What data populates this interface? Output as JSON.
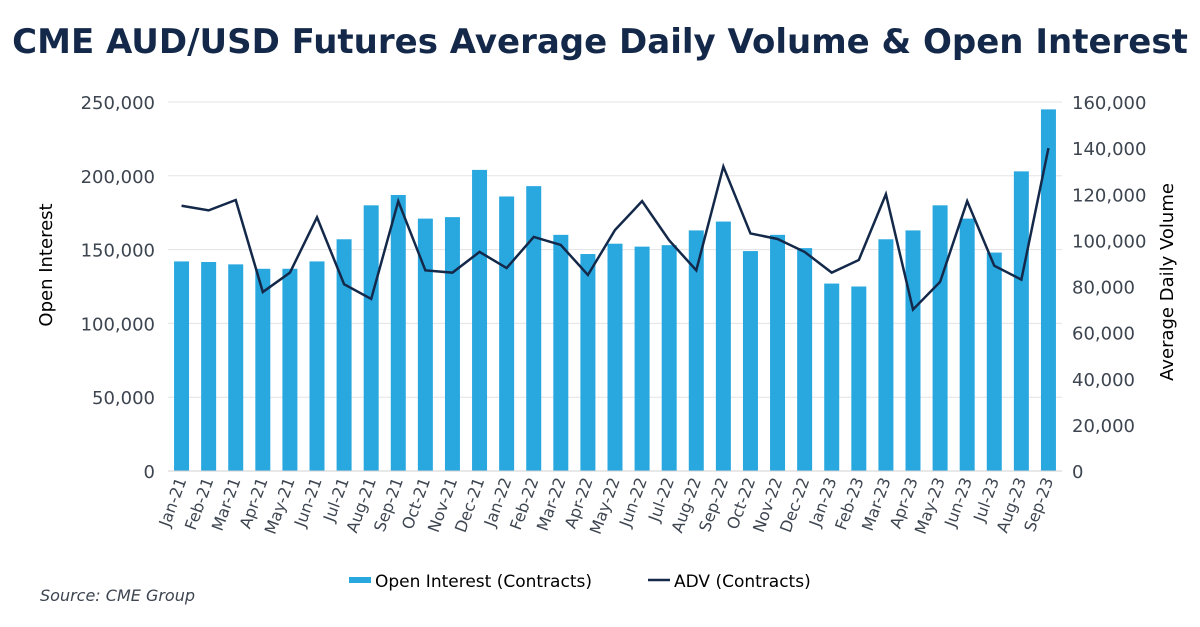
{
  "chart_data": {
    "type": "bar+line",
    "title": "CME AUD/USD Futures Average Daily Volume & Open Interest",
    "source": "Source: CME Group",
    "ylabel_left": "Open Interest",
    "ylabel_right": "Average Daily Volume",
    "ylim_left": [
      0,
      250000
    ],
    "ylim_right": [
      0,
      160000
    ],
    "yticks_left": [
      "0",
      "50,000",
      "100,000",
      "150,000",
      "200,000",
      "250,000"
    ],
    "yticks_right": [
      "0",
      "20,000",
      "40,000",
      "60,000",
      "80,000",
      "100,000",
      "120,000",
      "140,000",
      "160,000"
    ],
    "grid": true,
    "legend_position": "bottom",
    "categories": [
      "Jan-21",
      "Feb-21",
      "Mar-21",
      "Apr-21",
      "May-21",
      "Jun-21",
      "Jul-21",
      "Aug-21",
      "Sep-21",
      "Oct-21",
      "Nov-21",
      "Dec-21",
      "Jan-22",
      "Feb-22",
      "Mar-22",
      "Apr-22",
      "May-22",
      "Jun-22",
      "Jul-22",
      "Aug-22",
      "Sep-22",
      "Oct-22",
      "Nov-22",
      "Dec-22",
      "Jan-23",
      "Feb-23",
      "Mar-23",
      "Apr-23",
      "May-23",
      "Jun-23",
      "Jul-23",
      "Aug-23",
      "Sep-23"
    ],
    "series": [
      {
        "name": "Open Interest (Contracts)",
        "type": "bar",
        "axis": "left",
        "color": "#29a8e0",
        "values": [
          142000,
          141600,
          140000,
          137000,
          137000,
          142000,
          157000,
          180000,
          187000,
          171000,
          172000,
          204000,
          186000,
          193000,
          160000,
          147000,
          154000,
          152000,
          153000,
          163000,
          169000,
          149000,
          160000,
          151000,
          127000,
          125000,
          157000,
          163000,
          180000,
          171000,
          148000,
          203000,
          245000
        ]
      },
      {
        "name": "ADV (Contracts)",
        "type": "line",
        "axis": "right",
        "color": "#14294a",
        "values": [
          115000,
          113000,
          117500,
          77600,
          86000,
          110000,
          81000,
          74600,
          117000,
          87000,
          86000,
          95000,
          88000,
          101500,
          98000,
          85000,
          104500,
          117000,
          100000,
          87000,
          132000,
          103000,
          100600,
          95000,
          86000,
          91500,
          120000,
          70000,
          82000,
          117000,
          89000,
          83000,
          140000
        ]
      }
    ]
  }
}
